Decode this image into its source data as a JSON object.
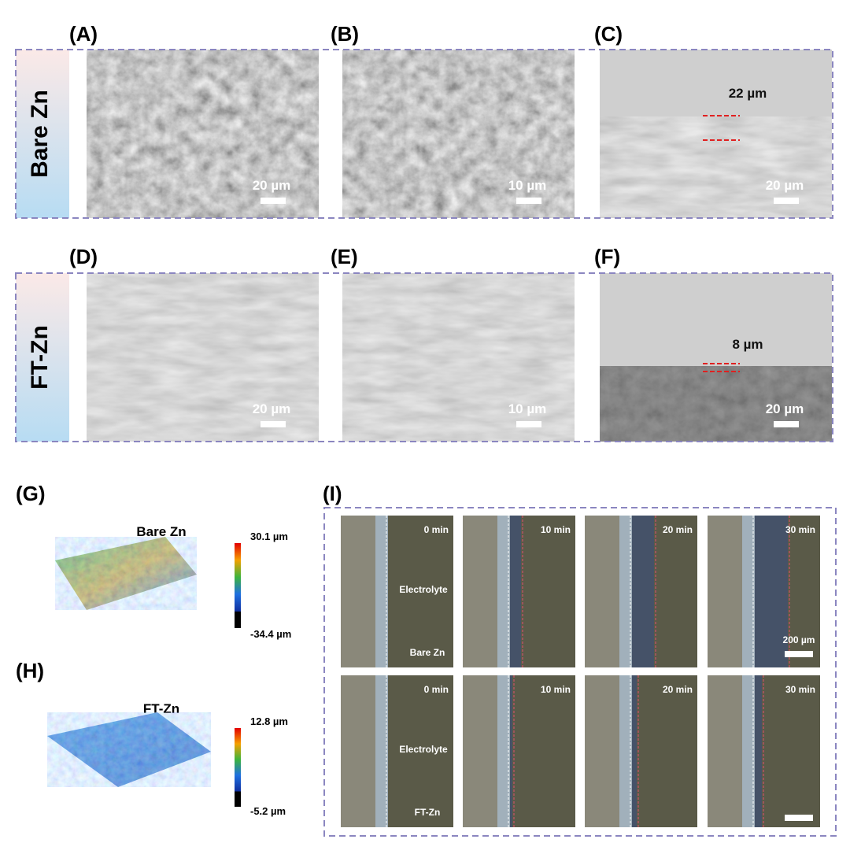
{
  "row_labels": [
    "Bare Zn",
    "FT-Zn"
  ],
  "sem_panels": [
    {
      "label": "(A)",
      "scale": "20 µm"
    },
    {
      "label": "(B)",
      "scale": "10 µm"
    },
    {
      "label": "(C)",
      "scale": "20 µm",
      "thickness": "22 µm"
    },
    {
      "label": "(D)",
      "scale": "20 µm"
    },
    {
      "label": "(E)",
      "scale": "10 µm"
    },
    {
      "label": "(F)",
      "scale": "20 µm",
      "thickness": "8 µm"
    }
  ],
  "profiles": [
    {
      "label": "(G)",
      "title": "Bare Zn",
      "max": "30.1 µm",
      "min": "-34.4 µm"
    },
    {
      "label": "(H)",
      "title": "FT-Zn",
      "max": "12.8 µm",
      "min": "-5.2 µm"
    }
  ],
  "optical": {
    "label": "(I)",
    "times": [
      "0 min",
      "10 min",
      "20 min",
      "30 min"
    ],
    "electrolyte": "Electrolyte",
    "rows": [
      "Bare Zn",
      "FT-Zn"
    ],
    "scale": "200 µm"
  }
}
